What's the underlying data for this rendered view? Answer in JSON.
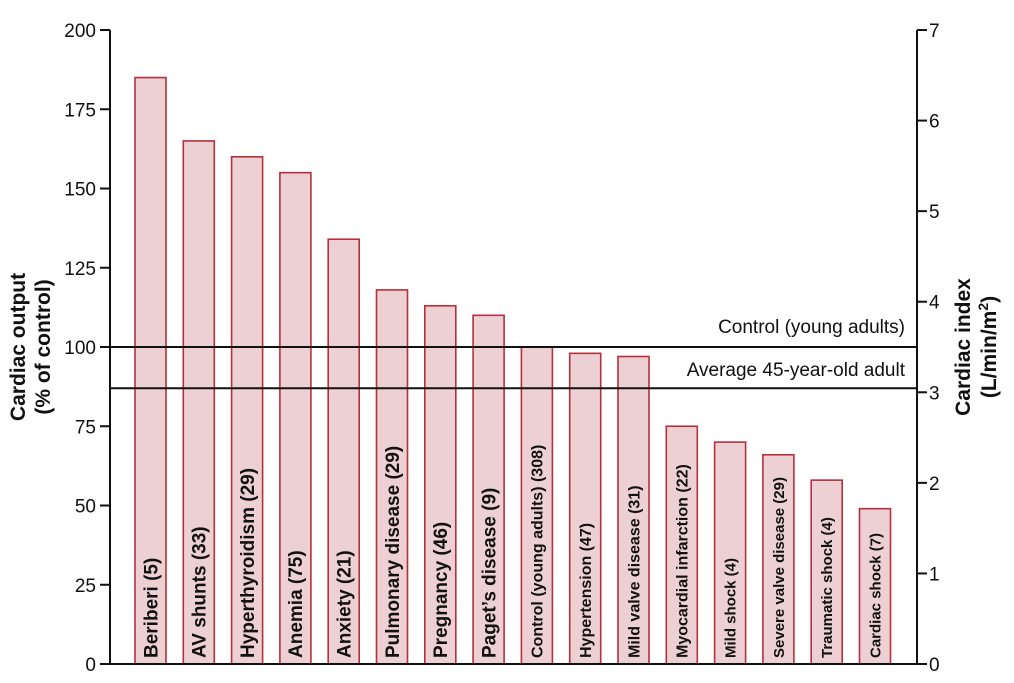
{
  "chart_data": {
    "type": "bar",
    "categories": [
      "Beriberi (5)",
      "AV shunts (33)",
      "Hyperthyroidism (29)",
      "Anemia (75)",
      "Anxiety (21)",
      "Pulmonary disease (29)",
      "Pregnancy (46)",
      "Paget’s disease (9)",
      "Control (young adults) (308)",
      "Hypertension (47)",
      "Mild valve disease (31)",
      "Myocardial infarction (22)",
      "Mild shock (4)",
      "Severe valve disease (29)",
      "Traumatic shock (4)",
      "Cardiac shock (7)"
    ],
    "values": [
      185,
      165,
      160,
      155,
      134,
      118,
      113,
      110,
      100,
      98,
      97,
      75,
      70,
      66,
      58,
      49
    ],
    "ylabel_left": [
      "Cardiac output",
      "(% of control)"
    ],
    "ylabel_right": [
      "Cardiac index",
      "(L/min/m",
      "2",
      ")"
    ],
    "ylim_left": [
      0,
      200
    ],
    "yticks_left": [
      "0",
      "25",
      "50",
      "75",
      "100",
      "125",
      "150",
      "175",
      "200"
    ],
    "ylim_right": [
      0,
      7
    ],
    "yticks_right": [
      "0",
      "1",
      "2",
      "3",
      "4",
      "5",
      "6",
      "7"
    ],
    "reference_lines": [
      {
        "label": "Control (young adults)",
        "value": 100
      },
      {
        "label": "Average 45-year-old adult",
        "value": 87
      }
    ],
    "bar_fill": "#ecd0d3",
    "bar_stroke": "#b5303a",
    "grid": false
  }
}
